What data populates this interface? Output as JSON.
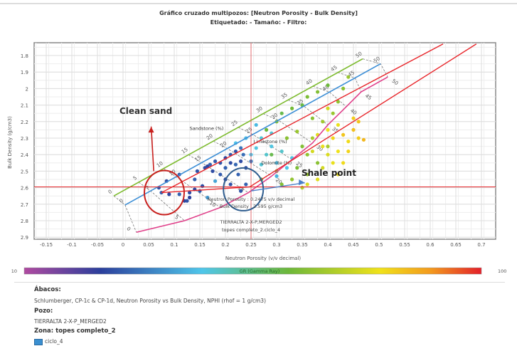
{
  "header": {
    "title": "Gráfico cruzado multipozos: [Neutron Porosity - Bulk Density]",
    "subtitle": "Etiquetado:  -  Tamaño:  -  Filtro:"
  },
  "chart_data": {
    "type": "scatter",
    "xlabel": "Neutron Porosity (v/v decimal)",
    "ylabel": "Bulk Density (g/cm3)",
    "xlim": [
      -0.17,
      0.73
    ],
    "ylim": [
      1.72,
      2.92
    ],
    "y_inverted": true,
    "grid": true,
    "x_ticks": [
      "-0.15",
      "-0.1",
      "-0.05",
      "0",
      "0.05",
      "0.1",
      "0.15",
      "0.2",
      "0.25",
      "0.3",
      "0.35",
      "0.4",
      "0.45",
      "0.5",
      "0.55",
      "0.6",
      "0.65",
      "0.7"
    ],
    "y_ticks": [
      "1.8",
      "1.9",
      "2",
      "2.1",
      "2.2",
      "2.3",
      "2.4",
      "2.5",
      "2.6",
      "2.7",
      "2.8",
      "2.9"
    ],
    "colorbar": {
      "label": "GR (Gamma Ray)",
      "min": "10",
      "max": "100",
      "stops": [
        [
          10,
          "#b04aa0"
        ],
        [
          25,
          "#2b3f9c"
        ],
        [
          45,
          "#4fc6ea"
        ],
        [
          62,
          "#6db83a"
        ],
        [
          80,
          "#f0e21a"
        ],
        [
          90,
          "#f39a1e"
        ],
        [
          100,
          "#e3202a"
        ]
      ]
    },
    "lithology_lines": [
      {
        "name": "Sandstone (%)",
        "color": "#7dbb2e",
        "points": [
          [
            -0.018,
            2.65
          ],
          [
            0.468,
            1.82
          ]
        ]
      },
      {
        "name": "Limestone (%)",
        "color": "#3d8fd6",
        "points": [
          [
            0.004,
            2.705
          ],
          [
            0.503,
            1.85
          ]
        ]
      },
      {
        "name": "Dolomite (%)",
        "color": "#e0408a",
        "points": [
          [
            0.026,
            2.87
          ],
          [
            0.12,
            2.8
          ],
          [
            0.19,
            2.72
          ],
          [
            0.245,
            2.63
          ],
          [
            0.29,
            2.53
          ],
          [
            0.33,
            2.43
          ],
          [
            0.37,
            2.33
          ],
          [
            0.4,
            2.22
          ],
          [
            0.436,
            2.11
          ],
          [
            0.465,
            2.02
          ],
          [
            0.517,
            1.93
          ]
        ]
      }
    ],
    "porosity_labels": [
      "0",
      "5",
      "10",
      "15",
      "20",
      "25",
      "30",
      "35",
      "40",
      "45",
      "50"
    ],
    "shale_lines": {
      "color": "#e8252a",
      "clean_sand": [
        0.075,
        2.63
      ],
      "shale_point": [
        0.2475,
        2.595
      ],
      "upper_end": [
        0.625,
        1.73
      ],
      "lower_end": [
        0.69,
        1.73
      ]
    },
    "crosshair": {
      "x": 0.25,
      "y": 2.595
    },
    "annotations": {
      "clean_sand": "Clean sand",
      "shale_point": "Shale point"
    },
    "tooltip": [
      "Neutron Porosity : 0.2475 v/v decimal",
      "Bulk Density : 2.595 g/cm3",
      "TIERRALTA 2-X-P,MERGED2",
      "topes completo_2.ciclo_4"
    ],
    "points": [
      [
        0.075,
        2.63,
        30
      ],
      [
        0.07,
        2.6,
        28
      ],
      [
        0.09,
        2.64,
        26
      ],
      [
        0.085,
        2.56,
        27
      ],
      [
        0.11,
        2.52,
        29
      ],
      [
        0.11,
        2.64,
        30
      ],
      [
        0.13,
        2.66,
        25
      ],
      [
        0.13,
        2.63,
        27
      ],
      [
        0.12,
        2.68,
        26
      ],
      [
        0.125,
        2.68,
        28
      ],
      [
        0.14,
        2.61,
        26
      ],
      [
        0.15,
        2.62,
        29
      ],
      [
        0.155,
        2.59,
        27
      ],
      [
        0.14,
        2.55,
        30
      ],
      [
        0.145,
        2.5,
        28
      ],
      [
        0.16,
        2.48,
        27
      ],
      [
        0.165,
        2.47,
        26
      ],
      [
        0.17,
        2.46,
        30
      ],
      [
        0.18,
        2.44,
        29
      ],
      [
        0.175,
        2.5,
        27
      ],
      [
        0.19,
        2.45,
        28
      ],
      [
        0.2,
        2.42,
        26
      ],
      [
        0.2,
        2.48,
        30
      ],
      [
        0.21,
        2.4,
        29
      ],
      [
        0.21,
        2.45,
        27
      ],
      [
        0.22,
        2.38,
        28
      ],
      [
        0.22,
        2.46,
        31
      ],
      [
        0.23,
        2.44,
        27
      ],
      [
        0.19,
        2.52,
        29
      ],
      [
        0.2,
        2.55,
        26
      ],
      [
        0.21,
        2.58,
        28
      ],
      [
        0.225,
        2.52,
        30
      ],
      [
        0.24,
        2.48,
        27
      ],
      [
        0.235,
        2.4,
        32
      ],
      [
        0.24,
        2.58,
        30
      ],
      [
        0.23,
        2.62,
        28
      ],
      [
        0.165,
        2.66,
        38
      ],
      [
        0.18,
        2.56,
        40
      ],
      [
        0.23,
        2.36,
        33
      ],
      [
        0.25,
        2.44,
        34
      ],
      [
        0.22,
        2.33,
        45
      ],
      [
        0.24,
        2.3,
        44
      ],
      [
        0.26,
        2.36,
        46
      ],
      [
        0.27,
        2.3,
        47
      ],
      [
        0.25,
        2.4,
        45
      ],
      [
        0.28,
        2.4,
        48
      ],
      [
        0.29,
        2.35,
        46
      ],
      [
        0.3,
        2.45,
        44
      ],
      [
        0.27,
        2.46,
        47
      ],
      [
        0.31,
        2.38,
        48
      ],
      [
        0.33,
        2.42,
        46
      ],
      [
        0.32,
        2.48,
        45
      ],
      [
        0.26,
        2.22,
        43
      ],
      [
        0.29,
        2.27,
        47
      ],
      [
        0.3,
        2.53,
        42
      ],
      [
        0.28,
        2.25,
        62
      ],
      [
        0.3,
        2.2,
        64
      ],
      [
        0.31,
        2.15,
        60
      ],
      [
        0.33,
        2.12,
        63
      ],
      [
        0.35,
        2.1,
        61
      ],
      [
        0.36,
        2.05,
        64
      ],
      [
        0.38,
        2.02,
        65
      ],
      [
        0.4,
        1.98,
        62
      ],
      [
        0.32,
        2.3,
        66
      ],
      [
        0.34,
        2.26,
        68
      ],
      [
        0.35,
        2.35,
        65
      ],
      [
        0.36,
        2.4,
        67
      ],
      [
        0.37,
        2.3,
        70
      ],
      [
        0.38,
        2.45,
        66
      ],
      [
        0.34,
        2.48,
        64
      ],
      [
        0.36,
        2.52,
        68
      ],
      [
        0.3,
        2.5,
        63
      ],
      [
        0.33,
        2.55,
        67
      ],
      [
        0.39,
        2.2,
        69
      ],
      [
        0.4,
        2.35,
        70
      ],
      [
        0.41,
        2.15,
        68
      ],
      [
        0.37,
        2.18,
        66
      ],
      [
        0.29,
        2.4,
        60
      ],
      [
        0.31,
        2.58,
        65
      ],
      [
        0.35,
        2.6,
        71
      ],
      [
        0.42,
        2.08,
        67
      ],
      [
        0.43,
        2.0,
        66
      ],
      [
        0.44,
        1.93,
        68
      ],
      [
        0.27,
        2.55,
        62
      ],
      [
        0.38,
        2.28,
        78
      ],
      [
        0.4,
        2.25,
        80
      ],
      [
        0.41,
        2.3,
        82
      ],
      [
        0.42,
        2.22,
        79
      ],
      [
        0.43,
        2.28,
        84
      ],
      [
        0.44,
        2.32,
        81
      ],
      [
        0.45,
        2.25,
        85
      ],
      [
        0.46,
        2.3,
        83
      ],
      [
        0.47,
        2.31,
        86
      ],
      [
        0.4,
        2.4,
        77
      ],
      [
        0.42,
        2.38,
        80
      ],
      [
        0.44,
        2.38,
        82
      ],
      [
        0.39,
        2.48,
        76
      ],
      [
        0.41,
        2.45,
        79
      ],
      [
        0.43,
        2.45,
        81
      ],
      [
        0.38,
        2.55,
        78
      ],
      [
        0.36,
        2.58,
        77
      ],
      [
        0.45,
        2.18,
        83
      ],
      [
        0.4,
        2.12,
        76
      ],
      [
        0.42,
        2.52,
        80
      ],
      [
        0.37,
        2.38,
        76
      ],
      [
        0.46,
        2.2,
        84
      ],
      [
        0.39,
        2.35,
        79
      ]
    ]
  },
  "legend": {
    "abacos_label": "Ábacos:",
    "abacos_value": "Schlumberger, CP-1c & CP-1d, Neutron Porosity vs Bulk Density, NPHI (rhof = 1 g/cm3)",
    "pozo_label": "Pozo:",
    "pozo_value": "TIERRALTA 2-X-P_MERGED2",
    "zona_label": "Zona: topes completo_2",
    "zona_item": "ciclo_4"
  }
}
